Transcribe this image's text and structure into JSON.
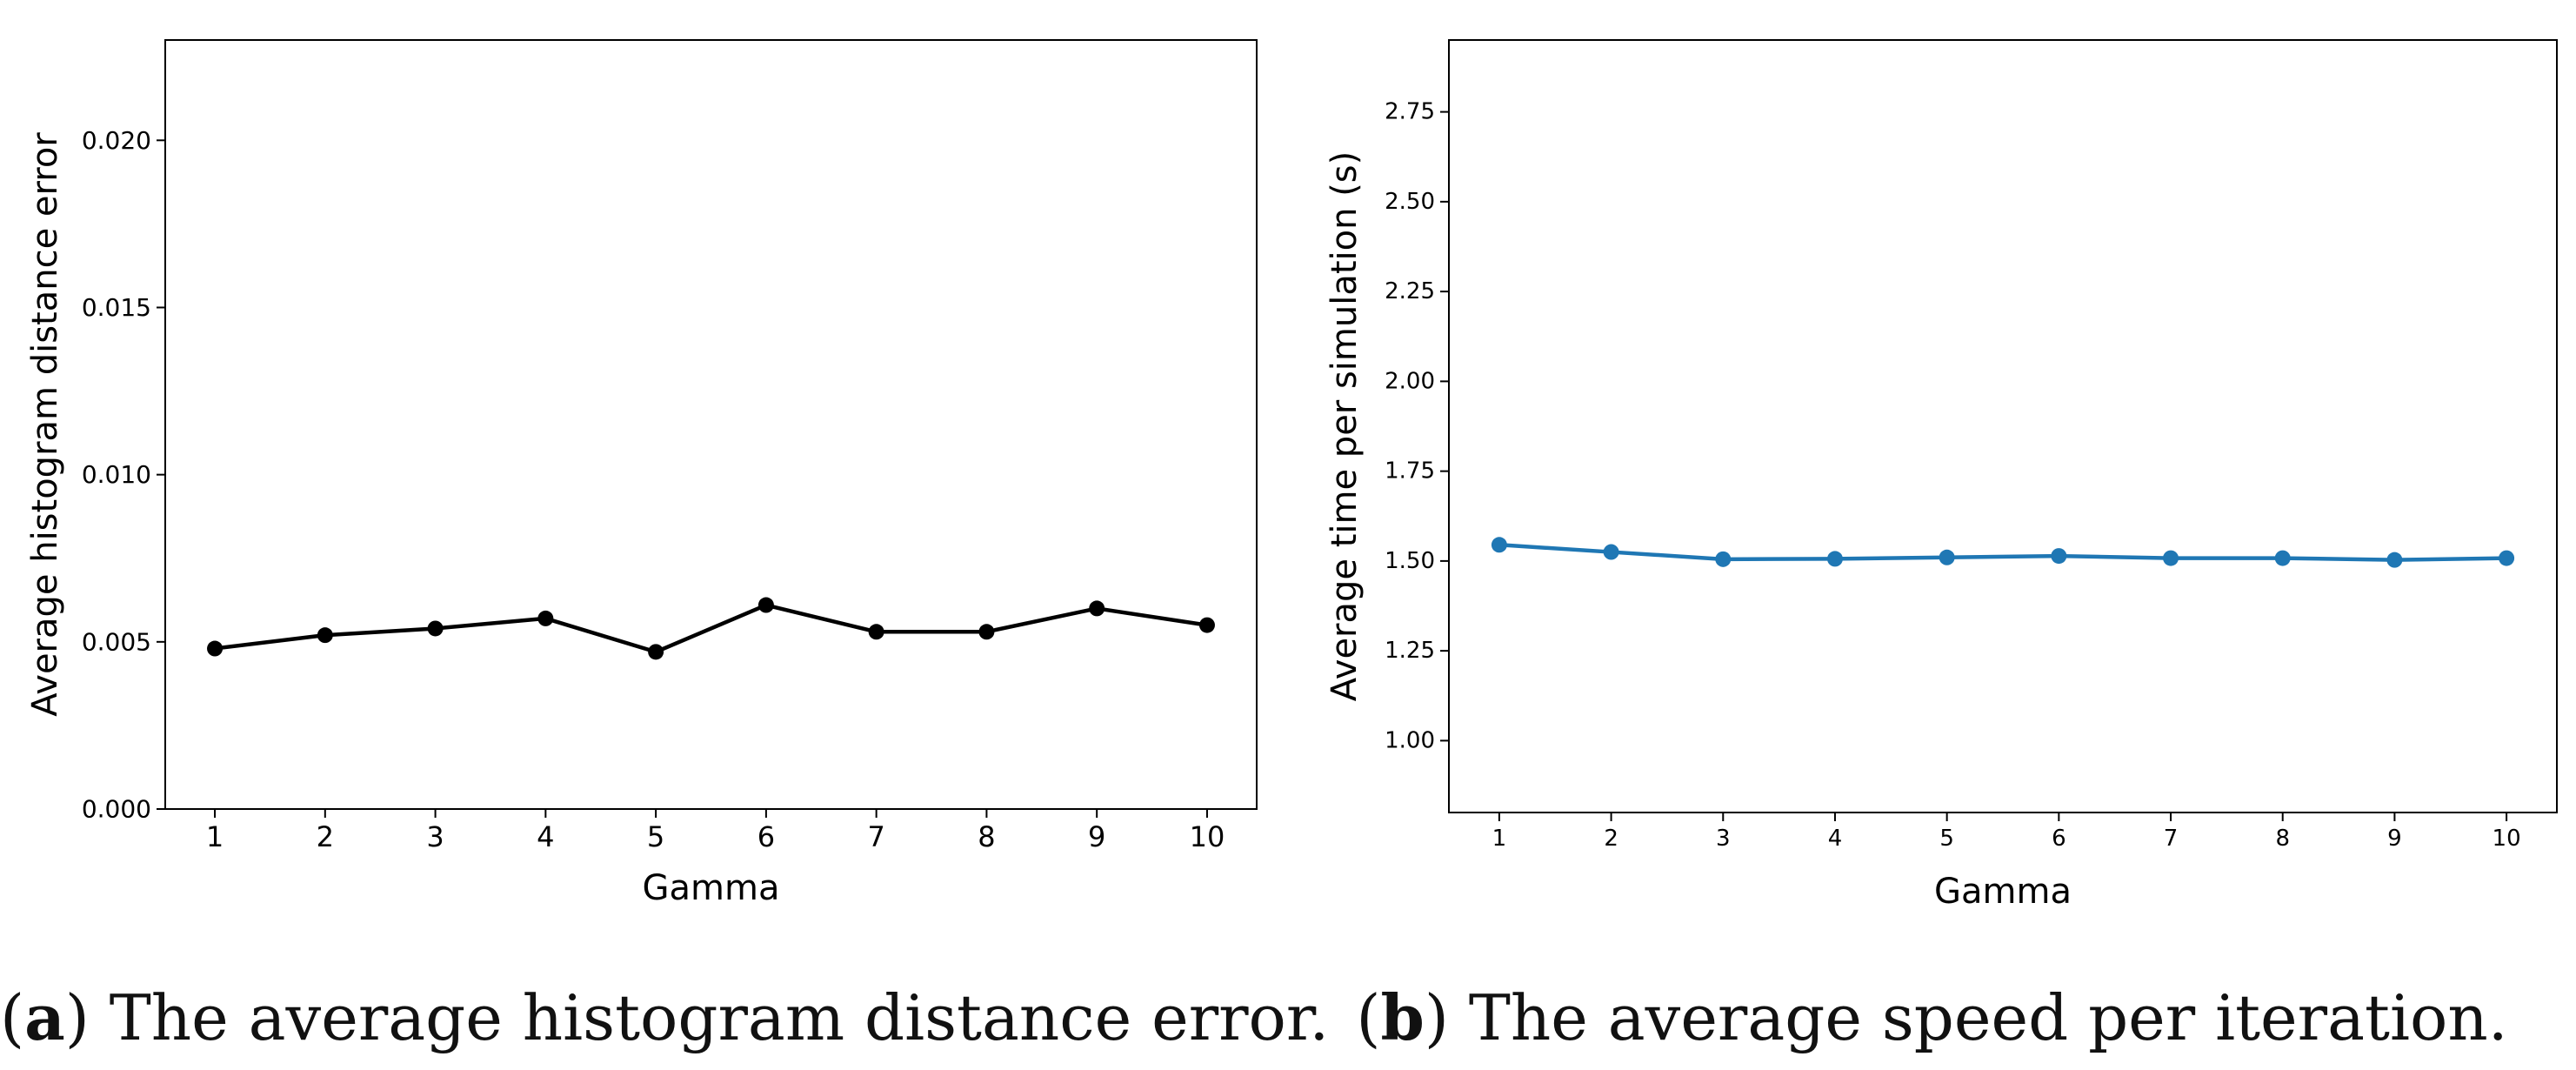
{
  "chart_data": [
    {
      "type": "line",
      "title": "",
      "xlabel": "Gamma",
      "ylabel": "Average histogram distance error",
      "x": [
        1,
        2,
        3,
        4,
        5,
        6,
        7,
        8,
        9,
        10
      ],
      "x_tick_labels": [
        "1",
        "2",
        "3",
        "4",
        "5",
        "6",
        "7",
        "8",
        "9",
        "10"
      ],
      "xlim": [
        0.55,
        10.45
      ],
      "ylim": [
        0,
        0.023
      ],
      "y_ticks": [
        0.0,
        0.005,
        0.01,
        0.015,
        0.02
      ],
      "y_tick_labels": [
        "0.000",
        "0.005",
        "0.010",
        "0.015",
        "0.020"
      ],
      "grid": false,
      "series": [
        {
          "name": "error",
          "color": "#000000",
          "values": [
            0.0048,
            0.0052,
            0.0054,
            0.0057,
            0.0047,
            0.0061,
            0.0053,
            0.0053,
            0.006,
            0.0055
          ]
        }
      ]
    },
    {
      "type": "line",
      "title": "",
      "xlabel": "Gamma",
      "ylabel": "Average time per simulation (s)",
      "x": [
        1,
        2,
        3,
        4,
        5,
        6,
        7,
        8,
        9,
        10
      ],
      "x_tick_labels": [
        "1",
        "2",
        "3",
        "4",
        "5",
        "6",
        "7",
        "8",
        "9",
        "10"
      ],
      "xlim": [
        0.55,
        10.45
      ],
      "ylim": [
        0.8,
        2.95
      ],
      "y_ticks": [
        1.0,
        1.25,
        1.5,
        1.75,
        2.0,
        2.25,
        2.5,
        2.75
      ],
      "y_tick_labels": [
        "1.00",
        "1.25",
        "1.50",
        "1.75",
        "2.00",
        "2.25",
        "2.50",
        "2.75"
      ],
      "grid": false,
      "series": [
        {
          "name": "time",
          "color": "#1f77b4",
          "values": [
            1.545,
            1.525,
            1.505,
            1.506,
            1.51,
            1.514,
            1.508,
            1.508,
            1.503,
            1.508
          ]
        }
      ]
    }
  ],
  "captions": [
    {
      "letter": "a",
      "text": " The average histogram distance error."
    },
    {
      "letter": "b",
      "text": " The average speed per iteration."
    }
  ]
}
